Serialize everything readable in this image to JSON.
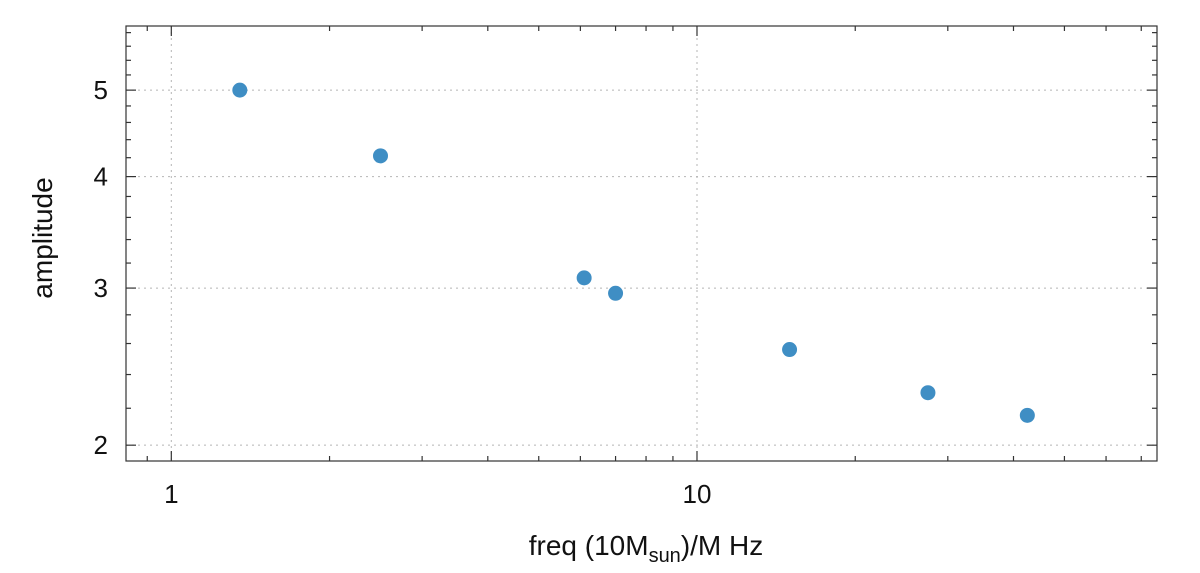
{
  "chart_data": {
    "type": "scatter",
    "xlabel": "freq  (10M",
    "xlabel_sub": "sun",
    "xlabel_tail": ")/M Hz",
    "ylabel": "amplitude",
    "x_scale": "log",
    "y_scale": "log",
    "xlim": [
      0.82,
      75
    ],
    "ylim": [
      1.92,
      5.9
    ],
    "grid": true,
    "x_ticks": [
      {
        "value": 1,
        "label": "1"
      },
      {
        "value": 10,
        "label": "10"
      }
    ],
    "y_ticks": [
      {
        "value": 2,
        "label": "2"
      },
      {
        "value": 3,
        "label": "3"
      },
      {
        "value": 4,
        "label": "4"
      },
      {
        "value": 5,
        "label": "5"
      }
    ],
    "marker_color": "#3f8ec4",
    "points": [
      {
        "x": 1.35,
        "y": 5.0
      },
      {
        "x": 2.5,
        "y": 4.22
      },
      {
        "x": 6.1,
        "y": 3.08
      },
      {
        "x": 7.0,
        "y": 2.96
      },
      {
        "x": 15.0,
        "y": 2.56
      },
      {
        "x": 27.5,
        "y": 2.29
      },
      {
        "x": 42.5,
        "y": 2.16
      }
    ]
  }
}
